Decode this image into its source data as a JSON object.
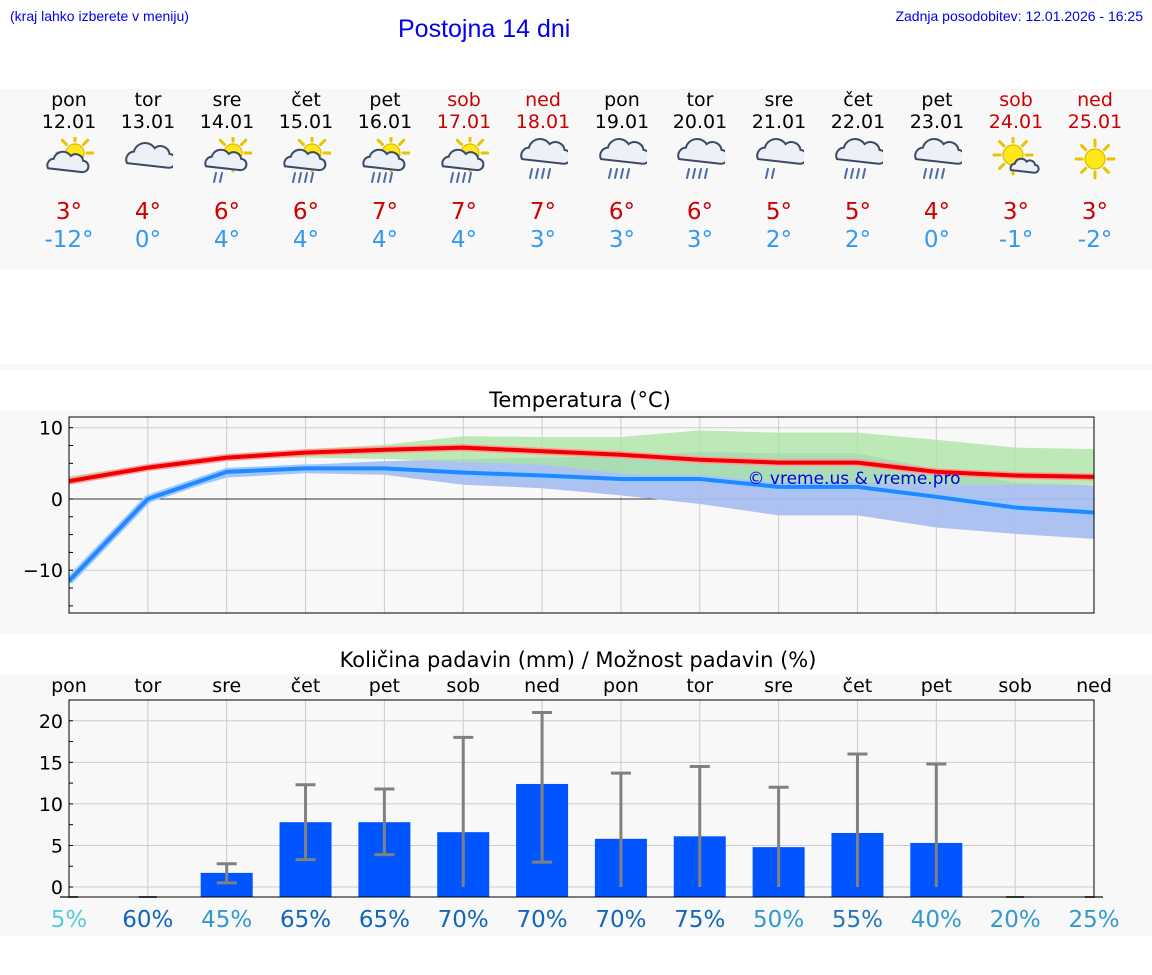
{
  "header": {
    "hint": "(kraj lahko izberete v meniju)",
    "title": "Postojna 14 dni",
    "updated": "Zadnja posodobitev: 12.01.2026 - 16:25"
  },
  "days": [
    {
      "name": "pon",
      "date": "12.01",
      "weekend": false,
      "icon": "sun-cloud-icon",
      "tmax": "3°",
      "tmin": "-12°"
    },
    {
      "name": "tor",
      "date": "13.01",
      "weekend": false,
      "icon": "cloud-icon",
      "tmax": "4°",
      "tmin": "0°"
    },
    {
      "name": "sre",
      "date": "14.01",
      "weekend": false,
      "icon": "sun-rain-light-icon",
      "tmax": "6°",
      "tmin": "4°"
    },
    {
      "name": "čet",
      "date": "15.01",
      "weekend": false,
      "icon": "sun-rain-icon",
      "tmax": "6°",
      "tmin": "4°"
    },
    {
      "name": "pet",
      "date": "16.01",
      "weekend": false,
      "icon": "sun-rain-icon",
      "tmax": "7°",
      "tmin": "4°"
    },
    {
      "name": "sob",
      "date": "17.01",
      "weekend": true,
      "icon": "sun-rain-icon",
      "tmax": "7°",
      "tmin": "4°"
    },
    {
      "name": "ned",
      "date": "18.01",
      "weekend": true,
      "icon": "cloud-rain-icon",
      "tmax": "7°",
      "tmin": "3°"
    },
    {
      "name": "pon",
      "date": "19.01",
      "weekend": false,
      "icon": "cloud-rain-icon",
      "tmax": "6°",
      "tmin": "3°"
    },
    {
      "name": "tor",
      "date": "20.01",
      "weekend": false,
      "icon": "cloud-rain-icon",
      "tmax": "6°",
      "tmin": "3°"
    },
    {
      "name": "sre",
      "date": "21.01",
      "weekend": false,
      "icon": "cloud-rain-light-icon",
      "tmax": "5°",
      "tmin": "2°"
    },
    {
      "name": "čet",
      "date": "22.01",
      "weekend": false,
      "icon": "cloud-rain-icon",
      "tmax": "5°",
      "tmin": "2°"
    },
    {
      "name": "pet",
      "date": "23.01",
      "weekend": false,
      "icon": "cloud-rain-icon",
      "tmax": "4°",
      "tmin": "0°"
    },
    {
      "name": "sob",
      "date": "24.01",
      "weekend": true,
      "icon": "sun-small-cloud-icon",
      "tmax": "3°",
      "tmin": "-1°"
    },
    {
      "name": "ned",
      "date": "25.01",
      "weekend": true,
      "icon": "sun-icon",
      "tmax": "3°",
      "tmin": "-2°"
    }
  ],
  "colors": {
    "max_line": "#ee0000",
    "min_line": "#2288ff",
    "max_band": "#a8e4a0",
    "min_band": "#aabff0",
    "overlap_band": "#78c4a8",
    "bar": "#0055ff",
    "error": "#808080",
    "watermark": "#0000ee"
  },
  "chart_data": [
    {
      "type": "line",
      "title": "Temperatura (°C)",
      "x": [
        0,
        1,
        2,
        3,
        4,
        5,
        6,
        7,
        8,
        9,
        10,
        11,
        12,
        13
      ],
      "ylim": [
        -16,
        11.5
      ],
      "yticks": [
        10,
        0,
        -10
      ],
      "series": [
        {
          "name": "max",
          "values": [
            2.5,
            4.4,
            5.8,
            6.5,
            6.9,
            7.2,
            6.7,
            6.2,
            5.5,
            5.1,
            5.1,
            3.8,
            3.3,
            3.1
          ]
        },
        {
          "name": "min",
          "values": [
            -11.5,
            0,
            3.8,
            4.3,
            4.3,
            3.7,
            3.3,
            2.8,
            2.8,
            1.7,
            1.7,
            0.3,
            -1.2,
            -1.9
          ]
        }
      ],
      "bands": [
        {
          "name": "max_range",
          "low": [
            2.2,
            4.2,
            5.6,
            5.8,
            5.6,
            5.2,
            4.8,
            3.6,
            2.8,
            2.4,
            2.3,
            2.0,
            2.0,
            2.0
          ],
          "high": [
            3.2,
            4.8,
            6.3,
            7.0,
            7.6,
            8.8,
            8.7,
            8.7,
            9.6,
            9.3,
            9.3,
            8.3,
            7.2,
            7.0
          ]
        },
        {
          "name": "min_range",
          "low": [
            -12.0,
            -0.2,
            3.0,
            3.6,
            3.4,
            2.0,
            1.5,
            0.5,
            -0.7,
            -2.3,
            -2.3,
            -4.0,
            -4.9,
            -5.6
          ],
          "high": [
            -11.0,
            0.2,
            4.2,
            4.8,
            5.3,
            5.6,
            5.8,
            6.0,
            6.6,
            6.4,
            6.4,
            4.2,
            2.3,
            1.9
          ]
        }
      ],
      "watermark": "© vreme.us & vreme.pro"
    },
    {
      "type": "bar",
      "title": "Količina padavin (mm) / Možnost padavin (%)",
      "categories": [
        "pon",
        "tor",
        "sre",
        "čet",
        "pet",
        "sob",
        "ned",
        "pon",
        "tor",
        "sre",
        "čet",
        "pet",
        "sob",
        "ned"
      ],
      "values": [
        0,
        0,
        1.7,
        7.8,
        7.8,
        6.6,
        12.4,
        5.8,
        6.1,
        4.8,
        6.5,
        5.3,
        0,
        0
      ],
      "error_low": [
        0,
        0,
        0.5,
        3.3,
        3.9,
        0,
        3.0,
        0,
        0,
        0,
        0,
        0,
        0,
        0
      ],
      "error_high": [
        0,
        0,
        2.8,
        12.3,
        11.8,
        18.0,
        21.0,
        13.7,
        14.5,
        12.0,
        16.0,
        14.8,
        0,
        0
      ],
      "ylim": [
        -1.2,
        22.5
      ],
      "yticks": [
        20,
        15,
        10,
        5,
        0
      ],
      "probability": [
        "5%",
        "60%",
        "45%",
        "65%",
        "65%",
        "70%",
        "70%",
        "70%",
        "75%",
        "50%",
        "55%",
        "40%",
        "20%",
        "25%"
      ],
      "probability_colors": [
        "#55ccdd",
        "#1166bb",
        "#3399cc",
        "#1166bb",
        "#1166bb",
        "#1166bb",
        "#1166bb",
        "#1166bb",
        "#1166bb",
        "#3399cc",
        "#2277bb",
        "#3399cc",
        "#3399cc",
        "#3399cc"
      ]
    }
  ]
}
